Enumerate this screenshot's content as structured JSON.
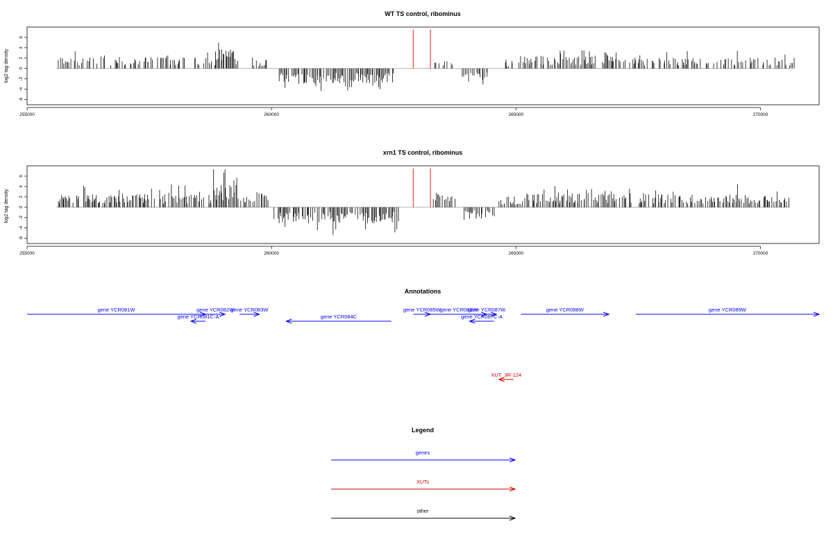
{
  "colors": {
    "gene": "#0000ff",
    "xut": "#cc0000",
    "other": "#000000",
    "highlight": "#ff5555",
    "bar": "#000000",
    "baseline": "#999999",
    "frame": "#000000"
  },
  "chart_data": [
    {
      "type": "bar",
      "title": "WT TS control, ribominus",
      "ylabel": "log2 tag density",
      "xlabel": "",
      "xlim": [
        255000,
        271200
      ],
      "ylim": [
        -7,
        8
      ],
      "grid": false,
      "x_ticks": [
        "255000",
        "260000",
        "265000",
        "270000"
      ],
      "y_ticks": [
        "-6",
        "-4",
        "-2",
        "0",
        "2",
        "4",
        "6"
      ],
      "highlight_lines": [
        {
          "x": 262900,
          "y": 7.5
        },
        {
          "x": 263250,
          "y": 7.5
        }
      ],
      "segments": [
        {
          "start": 255600,
          "end": 258850,
          "sign": 1,
          "typ": 1.8,
          "max": 4.0,
          "density": 0.55
        },
        {
          "start": 258850,
          "end": 259250,
          "sign": 1,
          "typ": 3.0,
          "max": 5.2,
          "density": 0.95
        },
        {
          "start": 259250,
          "end": 259400,
          "sign": 1,
          "typ": 1.5,
          "max": 2.5,
          "density": 0.6
        },
        {
          "start": 259600,
          "end": 259900,
          "sign": 1,
          "typ": 1.5,
          "max": 2.5,
          "density": 0.7
        },
        {
          "start": 260150,
          "end": 262500,
          "sign": -1,
          "typ": 2.3,
          "max": 4.5,
          "density": 0.85
        },
        {
          "start": 263300,
          "end": 263800,
          "sign": 1,
          "typ": 1.3,
          "max": 2.8,
          "density": 0.45
        },
        {
          "start": 263900,
          "end": 264450,
          "sign": -1,
          "typ": 1.6,
          "max": 3.2,
          "density": 0.65
        },
        {
          "start": 264700,
          "end": 264950,
          "sign": 1,
          "typ": 1.0,
          "max": 1.8,
          "density": 0.4
        },
        {
          "start": 265050,
          "end": 267000,
          "sign": 1,
          "typ": 2.0,
          "max": 3.6,
          "density": 0.7
        },
        {
          "start": 267000,
          "end": 270700,
          "sign": 1,
          "typ": 1.7,
          "max": 3.6,
          "density": 0.5
        }
      ]
    },
    {
      "type": "bar",
      "title": "xrn1 TS control, ribominus",
      "ylabel": "log2 tag density",
      "xlabel": "",
      "xlim": [
        255000,
        271200
      ],
      "ylim": [
        -7,
        8
      ],
      "grid": false,
      "x_ticks": [
        "255000",
        "260000",
        "265000",
        "270000"
      ],
      "y_ticks": [
        "-6",
        "-4",
        "-2",
        "0",
        "2",
        "4",
        "6"
      ],
      "highlight_lines": [
        {
          "x": 262900,
          "y": 7.5
        },
        {
          "x": 263250,
          "y": 7.5
        }
      ],
      "segments": [
        {
          "start": 255600,
          "end": 258750,
          "sign": 1,
          "typ": 2.0,
          "max": 4.5,
          "density": 0.7
        },
        {
          "start": 258750,
          "end": 259300,
          "sign": 1,
          "typ": 3.5,
          "max": 7.5,
          "density": 0.95
        },
        {
          "start": 259300,
          "end": 259600,
          "sign": 1,
          "typ": 1.5,
          "max": 2.5,
          "density": 0.6
        },
        {
          "start": 259600,
          "end": 259950,
          "sign": 1,
          "typ": 2.2,
          "max": 4.0,
          "density": 0.8
        },
        {
          "start": 260050,
          "end": 262600,
          "sign": -1,
          "typ": 2.5,
          "max": 6.5,
          "density": 0.85
        },
        {
          "start": 263300,
          "end": 263800,
          "sign": 1,
          "typ": 1.7,
          "max": 3.2,
          "density": 0.5
        },
        {
          "start": 263900,
          "end": 264550,
          "sign": -1,
          "typ": 1.8,
          "max": 3.3,
          "density": 0.7
        },
        {
          "start": 264650,
          "end": 265100,
          "sign": 1,
          "typ": 1.2,
          "max": 2.2,
          "density": 0.5
        },
        {
          "start": 265100,
          "end": 267400,
          "sign": 1,
          "typ": 2.2,
          "max": 4.2,
          "density": 0.75
        },
        {
          "start": 267500,
          "end": 270600,
          "sign": 1,
          "typ": 2.0,
          "max": 4.5,
          "density": 0.7
        }
      ]
    }
  ],
  "annotations": {
    "title": "Annotations",
    "features": [
      {
        "label": "gene YCR081W",
        "start": 255000,
        "end": 258650,
        "strand": "+",
        "kind": "gene",
        "row": 0
      },
      {
        "label": "gene YCR081C-A",
        "start": 258350,
        "end": 258650,
        "strand": "-",
        "kind": "gene",
        "row": 1
      },
      {
        "label": "gene YCR082W",
        "start": 258650,
        "end": 259050,
        "strand": "+",
        "kind": "gene",
        "row": 0
      },
      {
        "label": "gene YCR083W",
        "start": 259350,
        "end": 259750,
        "strand": "+",
        "kind": "gene",
        "row": 0
      },
      {
        "label": "gene YCR084C",
        "start": 260300,
        "end": 262450,
        "strand": "-",
        "kind": "gene",
        "row": 1
      },
      {
        "label": "gene YCR085W",
        "start": 262900,
        "end": 263250,
        "strand": "+",
        "kind": "gene",
        "row": 0
      },
      {
        "label": "gene YCR086W",
        "start": 263250,
        "end": 264400,
        "strand": "+",
        "kind": "gene",
        "row": 0
      },
      {
        "label": "gene YCR087W",
        "start": 264200,
        "end": 264600,
        "strand": "+",
        "kind": "gene",
        "row": 0
      },
      {
        "label": "gene YCR087C-A",
        "start": 264050,
        "end": 264550,
        "strand": "-",
        "kind": "gene",
        "row": 1
      },
      {
        "label": "gene YCR088W",
        "start": 265100,
        "end": 266900,
        "strand": "+",
        "kind": "gene",
        "row": 0
      },
      {
        "label": "gene YCR089W",
        "start": 267450,
        "end": 271200,
        "strand": "+",
        "kind": "gene",
        "row": 0
      },
      {
        "label": "XUT_3R-124",
        "start": 264650,
        "end": 264950,
        "strand": "-",
        "kind": "xut",
        "row": 2
      }
    ]
  },
  "legend": {
    "title": "Legend",
    "items": [
      {
        "label": "genes",
        "kind": "gene"
      },
      {
        "label": "XUTs",
        "kind": "xut"
      },
      {
        "label": "other",
        "kind": "other"
      }
    ]
  }
}
